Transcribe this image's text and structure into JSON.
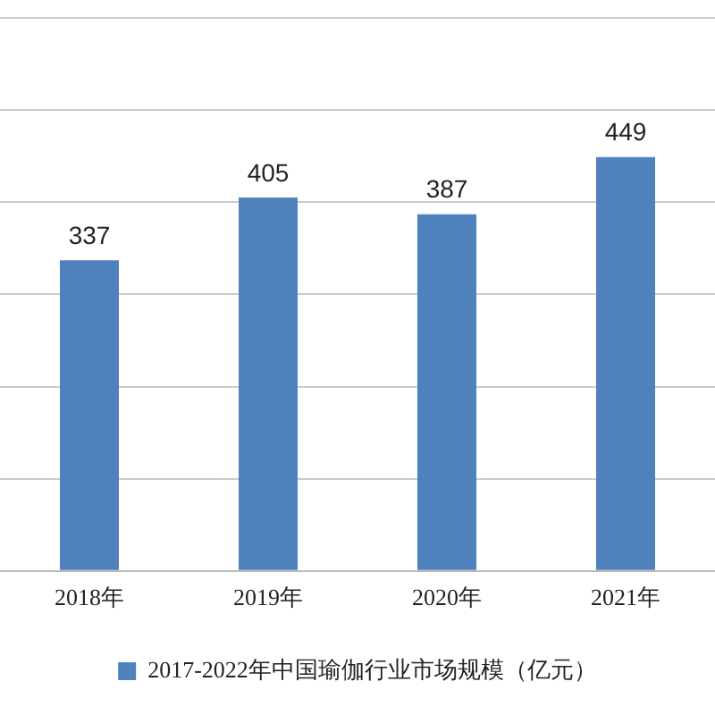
{
  "chart_data": {
    "type": "bar",
    "categories": [
      "2018年",
      "2019年",
      "2020年",
      "2021年"
    ],
    "series": [
      {
        "name": "2017-2022年中国瑜伽行业市场规模（亿元）",
        "color": "#4f81bd",
        "values": [
          337,
          405,
          387,
          449
        ]
      }
    ],
    "ylim": [
      0,
      600
    ],
    "yticks": [
      {
        "value": 0,
        "label": null
      },
      {
        "value": 100,
        "label": null
      },
      {
        "value": 200,
        "label": null
      },
      {
        "value": 300,
        "label": null
      },
      {
        "value": 400,
        "label": null
      },
      {
        "value": 500,
        "label": null
      },
      {
        "value": 600,
        "label": null
      }
    ],
    "tick_labels": "x",
    "grid": "y",
    "legend": "bottom",
    "data_labels": true
  }
}
